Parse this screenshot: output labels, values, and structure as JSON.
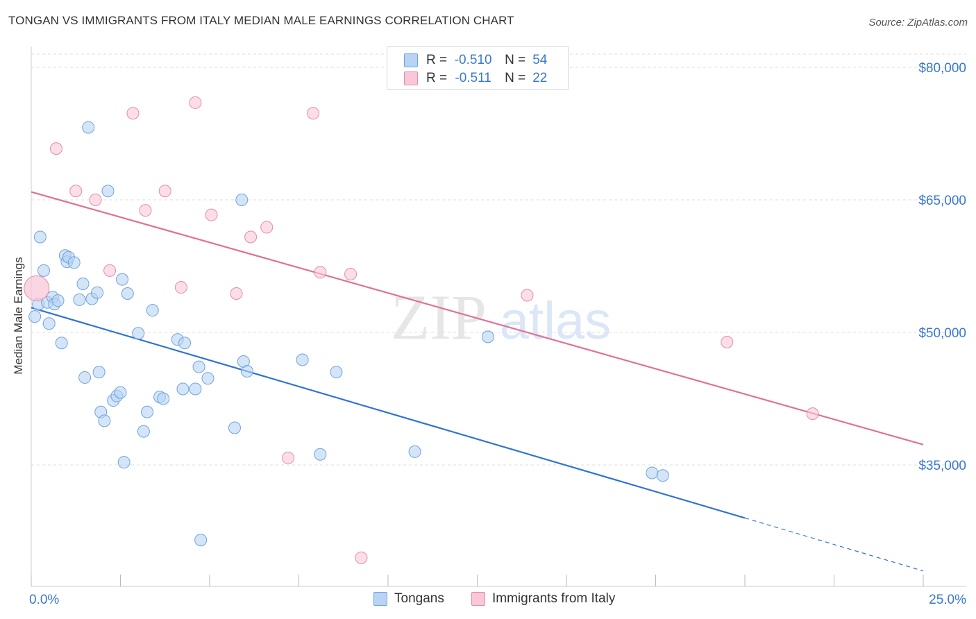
{
  "title": "TONGAN VS IMMIGRANTS FROM ITALY MEDIAN MALE EARNINGS CORRELATION CHART",
  "source": "Source: ZipAtlas.com",
  "watermark": {
    "zip": "ZIP",
    "atlas": "atlas"
  },
  "legend": {
    "r_label": "R =",
    "n_label": "N =",
    "rows": [
      {
        "r": "-0.510",
        "n": "54"
      },
      {
        "r": "-0.511",
        "n": "22"
      }
    ]
  },
  "chart_data": {
    "type": "scatter",
    "title": "TONGAN VS IMMIGRANTS FROM ITALY MEDIAN MALE EARNINGS CORRELATION CHART",
    "xlabel": "",
    "ylabel": "Median Male Earnings",
    "xlim": [
      0,
      25
    ],
    "ylim": [
      22000,
      83000
    ],
    "x_tick_labels": [
      "0.0%",
      "25.0%"
    ],
    "y_ticks": [
      35000,
      50000,
      65000,
      80000
    ],
    "y_tick_labels": [
      "$35,000",
      "$50,000",
      "$65,000",
      "$80,000"
    ],
    "grid": true,
    "legend_position": "top-center",
    "colors": {
      "tongans_fill": "#b8d3f4",
      "tongans_stroke": "#6fa3e0",
      "tongans_line": "#2f74d0",
      "italy_fill": "#f8c8d8",
      "italy_stroke": "#e88aaa",
      "italy_line": "#e07098",
      "tick_label": "#3a78d0",
      "grid": "#dddddd"
    },
    "series": [
      {
        "name": "Tongans",
        "r": -0.51,
        "n": 54,
        "trend": {
          "x0": 0,
          "y0": 52800,
          "x1": 20,
          "y1": 29000,
          "dash_to_x": 25,
          "dash_to_y": 23000
        },
        "points": [
          [
            0.1,
            51800
          ],
          [
            0.2,
            53200
          ],
          [
            0.25,
            60800
          ],
          [
            0.35,
            57000
          ],
          [
            0.45,
            53400
          ],
          [
            0.5,
            51000
          ],
          [
            0.6,
            54000
          ],
          [
            0.65,
            53200
          ],
          [
            0.75,
            53600
          ],
          [
            0.85,
            48800
          ],
          [
            0.95,
            58700
          ],
          [
            1.0,
            58000
          ],
          [
            1.05,
            58500
          ],
          [
            1.2,
            57900
          ],
          [
            1.35,
            53700
          ],
          [
            1.45,
            55500
          ],
          [
            1.5,
            44900
          ],
          [
            1.6,
            73200
          ],
          [
            1.7,
            53800
          ],
          [
            1.85,
            54500
          ],
          [
            1.9,
            45500
          ],
          [
            1.95,
            41000
          ],
          [
            2.05,
            40000
          ],
          [
            2.15,
            66000
          ],
          [
            2.3,
            42300
          ],
          [
            2.4,
            42800
          ],
          [
            2.5,
            43200
          ],
          [
            2.55,
            56000
          ],
          [
            2.6,
            35300
          ],
          [
            2.7,
            54400
          ],
          [
            3.0,
            49900
          ],
          [
            3.15,
            38800
          ],
          [
            3.25,
            41000
          ],
          [
            3.4,
            52500
          ],
          [
            3.6,
            42700
          ],
          [
            3.7,
            42500
          ],
          [
            4.1,
            49200
          ],
          [
            4.25,
            43600
          ],
          [
            4.3,
            48800
          ],
          [
            4.6,
            43600
          ],
          [
            4.7,
            46100
          ],
          [
            4.75,
            26500
          ],
          [
            4.95,
            44800
          ],
          [
            5.7,
            39200
          ],
          [
            5.9,
            65000
          ],
          [
            5.95,
            46700
          ],
          [
            6.05,
            45600
          ],
          [
            7.6,
            46900
          ],
          [
            8.1,
            36200
          ],
          [
            8.55,
            45500
          ],
          [
            10.75,
            36500
          ],
          [
            12.8,
            49500
          ],
          [
            17.4,
            34100
          ],
          [
            17.7,
            33800
          ]
        ]
      },
      {
        "name": "Immigrants from Italy",
        "r": -0.511,
        "n": 22,
        "trend": {
          "x0": 0,
          "y0": 65900,
          "x1": 25,
          "y1": 37300
        },
        "points": [
          [
            0.15,
            55000
          ],
          [
            0.7,
            70800
          ],
          [
            1.25,
            66000
          ],
          [
            1.8,
            65000
          ],
          [
            2.2,
            57000
          ],
          [
            2.85,
            74800
          ],
          [
            3.2,
            63800
          ],
          [
            3.75,
            66000
          ],
          [
            4.2,
            55100
          ],
          [
            4.6,
            76000
          ],
          [
            5.05,
            63300
          ],
          [
            5.75,
            54400
          ],
          [
            6.15,
            60800
          ],
          [
            6.6,
            61900
          ],
          [
            7.2,
            35800
          ],
          [
            7.9,
            74800
          ],
          [
            8.1,
            56800
          ],
          [
            8.95,
            56600
          ],
          [
            9.25,
            24500
          ],
          [
            13.9,
            54200
          ],
          [
            19.5,
            48900
          ],
          [
            21.9,
            40800
          ]
        ]
      }
    ]
  }
}
